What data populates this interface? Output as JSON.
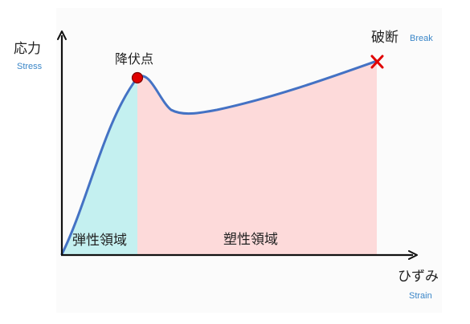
{
  "labels": {
    "y_axis_jp": "応力",
    "y_axis_en": "Stress",
    "x_axis_jp": "ひずみ",
    "x_axis_en": "Strain",
    "yield_point": "降伏点",
    "break_jp": "破断",
    "break_en": "Break",
    "elastic_region": "弾性領域",
    "plastic_region": "塑性領域"
  },
  "colors": {
    "curve": "#4472C4",
    "elastic_fill": "#C4F0F0",
    "plastic_fill": "#FDDADA",
    "yield_marker": "#E00000",
    "break_marker": "#E00000",
    "axis": "#111111",
    "english_label": "#3A86C8"
  },
  "icons": {
    "yield_marker": "red-dot",
    "break_marker": "red-x"
  }
}
